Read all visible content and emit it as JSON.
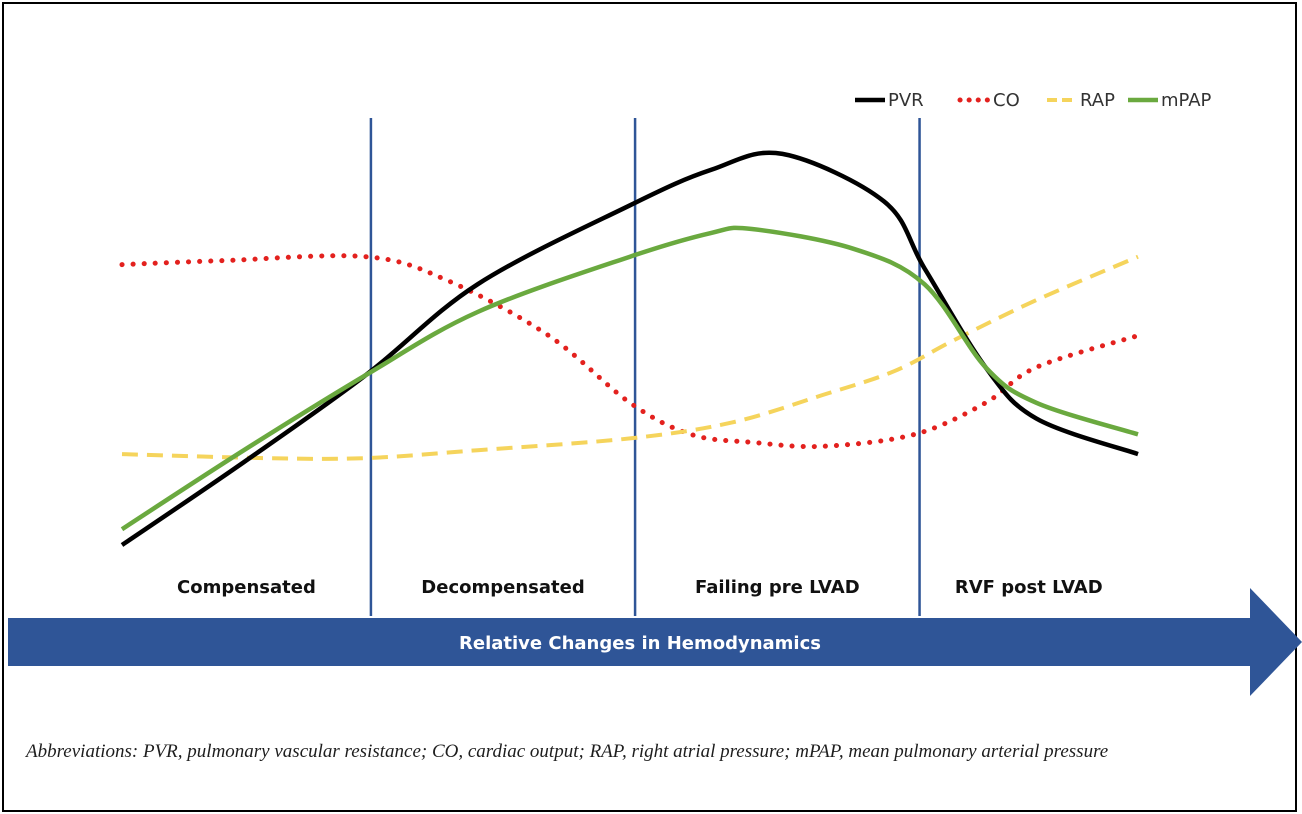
{
  "chart_data": {
    "type": "line",
    "title": "",
    "xlabel": "Relative Changes in Hemodynamics",
    "ylabel": "",
    "x_domain": [
      0,
      100
    ],
    "ylim": [
      0,
      100
    ],
    "phases": [
      "Compensated",
      "Decompensated",
      "Failing pre LVAD",
      "RVF post LVAD"
    ],
    "phase_boundaries": [
      24.5,
      50.5,
      78.5
    ],
    "legend_position": "top-right",
    "series": [
      {
        "name": "PVR",
        "color": "#000000",
        "style": "solid",
        "x": [
          0,
          12,
          24,
          35,
          50,
          58,
          65,
          75,
          79,
          85,
          90,
          100
        ],
        "y": [
          0,
          21,
          43,
          66,
          86,
          95,
          99,
          87,
          70,
          45,
          32,
          23
        ]
      },
      {
        "name": "CO",
        "color": "#e3211e",
        "style": "dotted",
        "x": [
          0,
          10,
          24,
          32,
          42,
          50,
          56,
          62,
          69,
          78,
          85,
          90,
          100
        ],
        "y": [
          71,
          72,
          73,
          67,
          53,
          36,
          28,
          26,
          25,
          28,
          36,
          45,
          53
        ]
      },
      {
        "name": "RAP",
        "color": "#f5d45c",
        "style": "dashed",
        "x": [
          0,
          14,
          24,
          35,
          50,
          60,
          69,
          76,
          82,
          90,
          100
        ],
        "y": [
          23,
          22,
          22,
          24,
          27,
          31,
          38,
          44,
          52,
          62,
          73
        ]
      },
      {
        "name": "mPAP",
        "color": "#6aa93f",
        "style": "solid",
        "x": [
          0,
          12,
          24,
          35,
          50,
          58,
          62,
          72,
          79,
          85,
          90,
          100
        ],
        "y": [
          4,
          24,
          43,
          59,
          73,
          79,
          80,
          75,
          66,
          45,
          36,
          28
        ]
      }
    ]
  },
  "caption": "Abbreviations: PVR, pulmonary vascular resistance; CO, cardiac output; RAP, right atrial pressure; mPAP, mean pulmonary arterial pressure"
}
